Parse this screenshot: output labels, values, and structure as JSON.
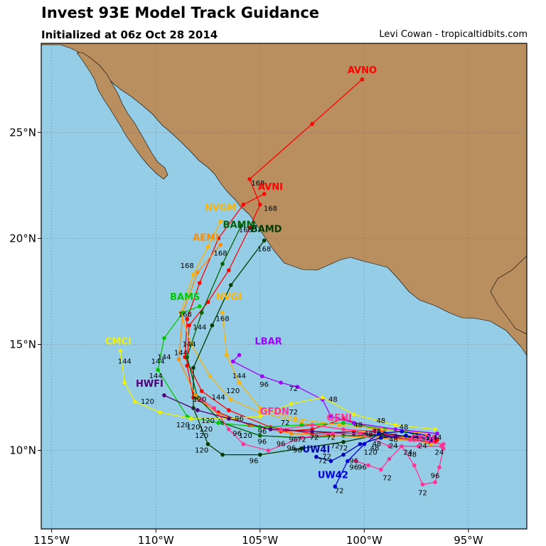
{
  "header": {
    "title": "Invest 93E Model Track Guidance",
    "subtitle": "Initialized at 06z Oct 28 2014",
    "credit": "Levi Cowan - tropicaltidbits.com"
  },
  "map": {
    "lon_range": [
      -115.5,
      -92.2
    ],
    "lat_range": [
      6.3,
      29.2
    ],
    "ocean_color": "#96cde6",
    "land_color": "#b98f5f",
    "lon_ticks": [
      {
        "value": -115,
        "label": "115°W"
      },
      {
        "value": -110,
        "label": "110°W"
      },
      {
        "value": -105,
        "label": "105°W"
      },
      {
        "value": -100,
        "label": "100°W"
      },
      {
        "value": -95,
        "label": "95°W"
      }
    ],
    "lat_ticks": [
      {
        "value": 10,
        "label": "10°N"
      },
      {
        "value": 15,
        "label": "15°N"
      },
      {
        "value": 20,
        "label": "20°N"
      },
      {
        "value": 25,
        "label": "25°N"
      }
    ]
  },
  "tracks": [
    {
      "name": "AVNO",
      "color": "#ff0000",
      "label_at": [
        -100.1,
        27.8
      ],
      "points": [
        [
          -96.5,
          10.5
        ],
        [
          -98.0,
          10.6
        ],
        [
          -99.5,
          11.0
        ],
        [
          -101.0,
          11.5
        ],
        [
          -102.5,
          11.0
        ],
        [
          -104.0,
          10.9
        ],
        [
          -105.5,
          11.2
        ],
        [
          -107.0,
          11.8
        ],
        [
          -108.2,
          12.5
        ],
        [
          -108.5,
          14.0
        ],
        [
          -108.4,
          15.9
        ],
        [
          -107.5,
          17.0
        ],
        [
          -106.5,
          18.5
        ],
        [
          -105.5,
          20.5
        ],
        [
          -105.0,
          21.6
        ],
        [
          -105.5,
          22.8
        ],
        [
          -102.5,
          25.4
        ],
        [
          -100.1,
          27.5
        ]
      ],
      "hour_labels": [
        {
          "lon": -104.5,
          "lat": 21.3,
          "text": "168"
        }
      ]
    },
    {
      "name": "AVNI",
      "color": "#ff0000",
      "label_at": [
        -104.5,
        22.3
      ],
      "points": [
        [
          -96.6,
          10.4
        ],
        [
          -98.5,
          10.6
        ],
        [
          -100.5,
          10.9
        ],
        [
          -102.5,
          10.8
        ],
        [
          -104.5,
          11.1
        ],
        [
          -106.5,
          11.9
        ],
        [
          -107.8,
          12.8
        ],
        [
          -108.6,
          14.4
        ],
        [
          -108.5,
          16.2
        ],
        [
          -107.9,
          17.9
        ],
        [
          -107.0,
          20.0
        ],
        [
          -105.8,
          21.6
        ],
        [
          -104.8,
          22.1
        ]
      ],
      "hour_labels": [
        {
          "lon": -105.1,
          "lat": 22.5,
          "text": "168"
        }
      ]
    },
    {
      "name": "NVGM",
      "color": "#ffb400",
      "label_at": [
        -106.9,
        21.3
      ],
      "points": [
        [
          -96.8,
          10.3
        ],
        [
          -98.8,
          10.8
        ],
        [
          -101.0,
          11.0
        ],
        [
          -103.0,
          11.3
        ],
        [
          -105.0,
          11.8
        ],
        [
          -106.4,
          12.4
        ],
        [
          -107.4,
          13.5
        ],
        [
          -108.3,
          15.0
        ],
        [
          -108.8,
          16.5
        ],
        [
          -108.2,
          18.3
        ],
        [
          -107.5,
          19.6
        ],
        [
          -106.9,
          20.8
        ]
      ],
      "hour_labels": []
    },
    {
      "name": "BAMM",
      "color": "#006400",
      "label_at": [
        -106.0,
        20.5
      ],
      "points": [
        [
          -96.9,
          10.4
        ],
        [
          -99.0,
          10.7
        ],
        [
          -101.0,
          10.7
        ],
        [
          -103.0,
          10.6
        ],
        [
          -105.0,
          10.7
        ],
        [
          -106.8,
          11.3
        ],
        [
          -108.0,
          12.5
        ],
        [
          -108.5,
          14.4
        ],
        [
          -107.8,
          16.5
        ],
        [
          -106.8,
          18.8
        ],
        [
          -105.9,
          20.6
        ]
      ],
      "hour_labels": [
        {
          "lon": -105.7,
          "lat": 20.3,
          "text": "168"
        }
      ]
    },
    {
      "name": "BAMD",
      "color": "#003c00",
      "label_at": [
        -104.7,
        20.3
      ],
      "points": [
        [
          -96.9,
          10.5
        ],
        [
          -99.0,
          10.8
        ],
        [
          -101.0,
          10.4
        ],
        [
          -103.0,
          10.1
        ],
        [
          -105.0,
          9.8
        ],
        [
          -106.8,
          9.8
        ],
        [
          -107.5,
          10.3
        ],
        [
          -108.2,
          12.0
        ],
        [
          -108.2,
          13.9
        ],
        [
          -107.3,
          15.9
        ],
        [
          -106.4,
          17.8
        ],
        [
          -104.8,
          19.9
        ]
      ],
      "hour_labels": [
        {
          "lon": -104.8,
          "lat": 19.4,
          "text": "168"
        },
        {
          "lon": -107.8,
          "lat": 9.9,
          "text": "120"
        },
        {
          "lon": -105.3,
          "lat": 9.4,
          "text": "96"
        }
      ]
    },
    {
      "name": "AEMI",
      "color": "#ff8c00",
      "label_at": [
        -107.6,
        19.9
      ],
      "points": [
        [
          -97.0,
          10.4
        ],
        [
          -99.3,
          10.6
        ],
        [
          -101.5,
          10.7
        ],
        [
          -103.5,
          10.8
        ],
        [
          -105.4,
          11.2
        ],
        [
          -107.0,
          11.7
        ],
        [
          -108.1,
          12.6
        ],
        [
          -108.9,
          14.3
        ],
        [
          -108.7,
          16.5
        ],
        [
          -108.0,
          18.4
        ],
        [
          -106.9,
          19.7
        ]
      ],
      "hour_labels": [
        {
          "lon": -106.9,
          "lat": 19.2,
          "text": "168"
        },
        {
          "lon": -108.5,
          "lat": 18.6,
          "text": "168"
        }
      ]
    },
    {
      "name": "BAMS",
      "color": "#00c800",
      "label_at": [
        -108.6,
        17.1
      ],
      "points": [
        [
          -97.0,
          10.7
        ],
        [
          -99.0,
          11.0
        ],
        [
          -101.0,
          11.3
        ],
        [
          -103.0,
          11.2
        ],
        [
          -105.0,
          11.1
        ],
        [
          -107.0,
          11.3
        ],
        [
          -108.5,
          11.6
        ],
        [
          -109.9,
          13.8
        ],
        [
          -109.6,
          15.3
        ],
        [
          -108.7,
          16.5
        ],
        [
          -107.9,
          16.8
        ]
      ],
      "hour_labels": [
        {
          "lon": -109.6,
          "lat": 14.3,
          "text": "144"
        },
        {
          "lon": -108.6,
          "lat": 16.3,
          "text": "168"
        }
      ]
    },
    {
      "name": "NVGI",
      "color": "#ffb400",
      "label_at": [
        -106.5,
        17.1
      ],
      "points": [
        [
          -97.0,
          10.8
        ],
        [
          -99.2,
          11.0
        ],
        [
          -101.2,
          11.2
        ],
        [
          -103.3,
          11.5
        ],
        [
          -105.0,
          12.0
        ],
        [
          -106.0,
          13.2
        ],
        [
          -106.6,
          14.5
        ],
        [
          -106.8,
          16.5
        ]
      ],
      "hour_labels": [
        {
          "lon": -106.8,
          "lat": 16.1,
          "text": "168"
        },
        {
          "lon": -106.3,
          "lat": 12.7,
          "text": "120"
        },
        {
          "lon": -106.0,
          "lat": 13.4,
          "text": "144"
        }
      ]
    },
    {
      "name": "LBAR",
      "color": "#a000ff",
      "label_at": [
        -104.6,
        15.0
      ],
      "points": [
        [
          -96.5,
          10.8
        ],
        [
          -98.5,
          11.0
        ],
        [
          -100.5,
          11.3
        ],
        [
          -101.6,
          11.6
        ],
        [
          -102.0,
          12.4
        ],
        [
          -103.2,
          13.0
        ],
        [
          -104.0,
          13.2
        ],
        [
          -104.9,
          13.5
        ],
        [
          -106.3,
          14.2
        ],
        [
          -106.0,
          14.5
        ]
      ],
      "hour_labels": [
        {
          "lon": -104.8,
          "lat": 13.0,
          "text": "96"
        },
        {
          "lon": -103.4,
          "lat": 12.8,
          "text": "72"
        },
        {
          "lon": -101.5,
          "lat": 12.3,
          "text": "48"
        }
      ]
    },
    {
      "name": "CMCI",
      "color": "#f0f000",
      "label_at": [
        -111.8,
        15.0
      ],
      "points": [
        [
          -96.6,
          11.0
        ],
        [
          -98.5,
          11.2
        ],
        [
          -100.5,
          11.7
        ],
        [
          -102.0,
          12.5
        ],
        [
          -103.5,
          12.2
        ],
        [
          -105.0,
          11.6
        ],
        [
          -106.5,
          11.5
        ],
        [
          -108.3,
          11.5
        ],
        [
          -109.8,
          11.8
        ],
        [
          -111.0,
          12.3
        ],
        [
          -111.5,
          13.2
        ],
        [
          -111.7,
          14.7
        ]
      ],
      "hour_labels": [
        {
          "lon": -111.5,
          "lat": 14.1,
          "text": "144"
        },
        {
          "lon": -110.4,
          "lat": 12.2,
          "text": "120"
        },
        {
          "lon": -103.4,
          "lat": 11.7,
          "text": "72"
        }
      ]
    },
    {
      "name": "HWFI",
      "color": "#500078",
      "label_at": [
        -110.3,
        13.0
      ],
      "points": [
        [
          -96.6,
          10.6
        ],
        [
          -98.5,
          10.7
        ],
        [
          -100.5,
          10.8
        ],
        [
          -102.5,
          10.9
        ],
        [
          -104.5,
          11.0
        ],
        [
          -106.5,
          11.5
        ],
        [
          -108.0,
          11.9
        ],
        [
          -109.6,
          12.6
        ]
      ],
      "hour_labels": []
    },
    {
      "name": "GFDN",
      "color": "#ff3296",
      "label_at": [
        -104.3,
        11.7
      ],
      "points": [
        [
          -96.3,
          10.2
        ],
        [
          -97.4,
          10.2
        ],
        [
          -98.8,
          10.2
        ],
        [
          -100.2,
          10.8
        ],
        [
          -101.5,
          10.8
        ],
        [
          -103.0,
          10.6
        ],
        [
          -104.6,
          10.0
        ],
        [
          -105.8,
          10.3
        ],
        [
          -106.5,
          11.0
        ],
        [
          -107.2,
          12.0
        ],
        [
          -107.8,
          12.4
        ]
      ],
      "hour_labels": []
    },
    {
      "name": "GFDI",
      "color": "#ff3296",
      "label_at": [
        -97.2,
        10.4
      ],
      "points": [
        [
          -96.2,
          10.1
        ],
        [
          -96.4,
          9.2
        ],
        [
          -96.6,
          8.5
        ],
        [
          -97.2,
          8.4
        ],
        [
          -97.6,
          9.3
        ],
        [
          -98.2,
          10.2
        ],
        [
          -98.8,
          9.6
        ],
        [
          -99.2,
          9.1
        ],
        [
          -99.8,
          9.3
        ],
        [
          -100.4,
          9.5
        ]
      ],
      "hour_labels": [
        {
          "lon": -96.6,
          "lat": 8.7,
          "text": "96"
        },
        {
          "lon": -97.2,
          "lat": 7.9,
          "text": "72"
        },
        {
          "lon": -98.9,
          "lat": 8.6,
          "text": "72"
        }
      ]
    },
    {
      "name": "GENI",
      "color": "#ff3296",
      "label_at": [
        -101.2,
        11.4
      ],
      "points": [
        [
          -96.2,
          10.3
        ],
        [
          -97.8,
          10.5
        ],
        [
          -99.5,
          10.9
        ],
        [
          -101.0,
          11.0
        ],
        [
          -102.5,
          11.2
        ],
        [
          -104.0,
          11.0
        ]
      ],
      "hour_labels": []
    },
    {
      "name": "UW4I",
      "color": "#0000b4",
      "label_at": [
        -102.3,
        9.9
      ],
      "points": [
        [
          -96.8,
          10.5
        ],
        [
          -98.0,
          10.7
        ],
        [
          -99.2,
          10.6
        ],
        [
          -100.2,
          10.3
        ],
        [
          -101.0,
          9.8
        ],
        [
          -101.6,
          9.5
        ],
        [
          -102.3,
          9.7
        ]
      ],
      "hour_labels": [
        {
          "lon": -102.0,
          "lat": 9.4,
          "text": "72"
        }
      ]
    },
    {
      "name": "UW42",
      "color": "#0000dc",
      "label_at": [
        -101.5,
        8.7
      ],
      "points": [
        [
          -96.9,
          10.7
        ],
        [
          -98.2,
          10.9
        ],
        [
          -99.3,
          10.8
        ],
        [
          -100.0,
          10.3
        ],
        [
          -100.8,
          9.5
        ],
        [
          -101.4,
          8.3
        ]
      ],
      "hour_labels": [
        {
          "lon": -101.2,
          "lat": 8.0,
          "text": "72"
        },
        {
          "lon": -100.5,
          "lat": 9.1,
          "text": "96"
        }
      ]
    }
  ],
  "extra_hour_labels": [
    {
      "lon": -109.9,
      "lat": 14.1,
      "text": "144"
    },
    {
      "lon": -108.4,
      "lat": 14.9,
      "text": "144"
    },
    {
      "lon": -107.9,
      "lat": 15.7,
      "text": "144"
    },
    {
      "lon": -108.8,
      "lat": 14.5,
      "text": "144"
    },
    {
      "lon": -110.0,
      "lat": 13.4,
      "text": "144"
    },
    {
      "lon": -107.0,
      "lat": 12.4,
      "text": "144"
    },
    {
      "lon": -107.9,
      "lat": 12.3,
      "text": "120"
    },
    {
      "lon": -107.5,
      "lat": 11.3,
      "text": "120"
    },
    {
      "lon": -107.6,
      "lat": 10.9,
      "text": "120"
    },
    {
      "lon": -107.8,
      "lat": 10.6,
      "text": "120"
    },
    {
      "lon": -108.2,
      "lat": 11.0,
      "text": "120"
    },
    {
      "lon": -108.7,
      "lat": 11.1,
      "text": "120"
    },
    {
      "lon": -105.7,
      "lat": 10.6,
      "text": "120"
    },
    {
      "lon": -106.0,
      "lat": 11.4,
      "text": "96"
    },
    {
      "lon": -104.9,
      "lat": 10.8,
      "text": "96"
    },
    {
      "lon": -104.9,
      "lat": 10.3,
      "text": "96"
    },
    {
      "lon": -104.0,
      "lat": 10.2,
      "text": "96"
    },
    {
      "lon": -103.4,
      "lat": 10.4,
      "text": "96"
    },
    {
      "lon": -103.5,
      "lat": 10.0,
      "text": "96"
    },
    {
      "lon": -103.2,
      "lat": 9.9,
      "text": "96"
    },
    {
      "lon": -106.1,
      "lat": 10.7,
      "text": "96"
    },
    {
      "lon": -103.8,
      "lat": 11.2,
      "text": "72"
    },
    {
      "lon": -103.0,
      "lat": 10.4,
      "text": "72"
    },
    {
      "lon": -102.4,
      "lat": 10.5,
      "text": "72"
    },
    {
      "lon": -101.6,
      "lat": 10.5,
      "text": "72"
    },
    {
      "lon": -101.0,
      "lat": 10.0,
      "text": "72"
    },
    {
      "lon": -101.4,
      "lat": 10.1,
      "text": "72"
    },
    {
      "lon": -101.8,
      "lat": 9.6,
      "text": "72"
    },
    {
      "lon": -99.7,
      "lat": 9.8,
      "text": "120"
    },
    {
      "lon": -100.3,
      "lat": 11.1,
      "text": "48"
    },
    {
      "lon": -99.8,
      "lat": 10.7,
      "text": "48"
    },
    {
      "lon": -99.4,
      "lat": 10.8,
      "text": "48"
    },
    {
      "lon": -99.2,
      "lat": 11.3,
      "text": "48"
    },
    {
      "lon": -98.1,
      "lat": 11.0,
      "text": "48"
    },
    {
      "lon": -98.6,
      "lat": 10.4,
      "text": "48"
    },
    {
      "lon": -99.5,
      "lat": 10.0,
      "text": "48"
    },
    {
      "lon": -97.7,
      "lat": 9.7,
      "text": "48"
    },
    {
      "lon": -97.6,
      "lat": 10.6,
      "text": "24"
    },
    {
      "lon": -97.2,
      "lat": 10.1,
      "text": "24"
    },
    {
      "lon": -96.5,
      "lat": 10.5,
      "text": "24"
    },
    {
      "lon": -96.4,
      "lat": 9.8,
      "text": "24"
    },
    {
      "lon": -98.6,
      "lat": 10.1,
      "text": "24"
    },
    {
      "lon": -97.9,
      "lat": 9.8,
      "text": "24"
    },
    {
      "lon": -99.4,
      "lat": 10.2,
      "text": "48"
    },
    {
      "lon": -100.5,
      "lat": 9.4,
      "text": "96"
    },
    {
      "lon": -100.1,
      "lat": 9.1,
      "text": "96"
    }
  ]
}
